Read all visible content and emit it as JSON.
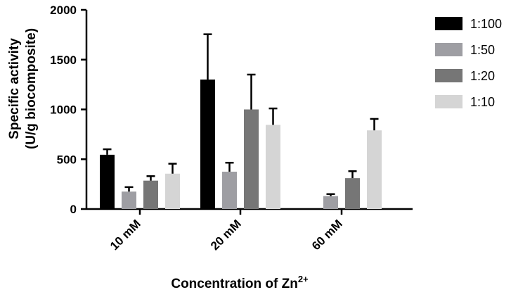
{
  "chart_data": {
    "type": "bar",
    "xlabel": "Concentration of Zn",
    "xlabel_sup": "2+",
    "ylabel_line1": "Specific activity",
    "ylabel_line2": "(U/g biocomposite)",
    "ylim": [
      0,
      2000
    ],
    "yticks": [
      0,
      500,
      1000,
      1500,
      2000
    ],
    "grid": false,
    "legend_position": "right",
    "categories": [
      "10 mM",
      "20 mM",
      "60 mM"
    ],
    "series": [
      {
        "name": "1:100",
        "color": "#000000",
        "values": [
          545,
          1300,
          0
        ],
        "errors": [
          55,
          455,
          0
        ]
      },
      {
        "name": "1:50",
        "color": "#9e9ea3",
        "values": [
          175,
          375,
          130
        ],
        "errors": [
          45,
          90,
          20
        ]
      },
      {
        "name": "1:20",
        "color": "#767676",
        "values": [
          285,
          1000,
          310
        ],
        "errors": [
          45,
          350,
          70
        ]
      },
      {
        "name": "1:10",
        "color": "#d5d5d5",
        "values": [
          355,
          845,
          790
        ],
        "errors": [
          100,
          165,
          115
        ]
      }
    ]
  }
}
